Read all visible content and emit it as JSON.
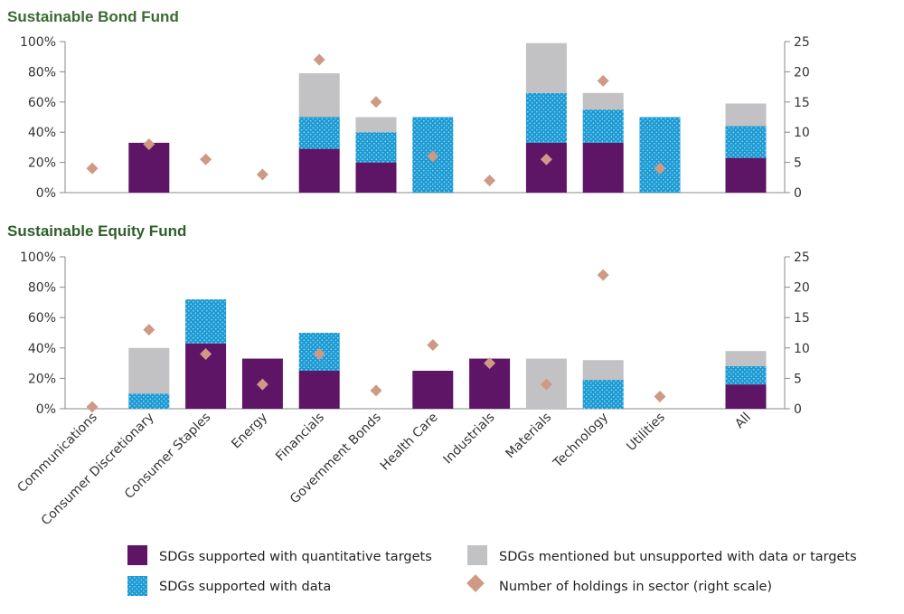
{
  "colors": {
    "quantitative": "#5e1566",
    "data": "#1d9bd4",
    "data_dots": "#bfe6f6",
    "mentioned": "#c2c2c4",
    "holdings": "#cf9a85",
    "bond_title": "#3a6b32",
    "equity_title": "#2f5e2a"
  },
  "legend": {
    "quantitative": "SDGs supported with quantitative targets",
    "data": "SDGs supported with data",
    "mentioned": "SDGs mentioned but unsupported with data or targets",
    "holdings": "Number of holdings in sector (right scale)"
  },
  "chart_data": [
    {
      "type": "bar",
      "stacked": true,
      "title": "Sustainable Bond Fund",
      "categories": [
        "Communications",
        "Consumer Discretionary",
        "Consumer Staples",
        "Energy",
        "Financials",
        "Government Bonds",
        "Health Care",
        "Industrials",
        "Materials",
        "Technology",
        "Utilities",
        "All"
      ],
      "series": [
        {
          "name": "SDGs supported with quantitative targets",
          "values": [
            0,
            33,
            0,
            0,
            29,
            20,
            0,
            0,
            33,
            33,
            0,
            23
          ]
        },
        {
          "name": "SDGs supported with data",
          "values": [
            0,
            0,
            0,
            0,
            21,
            20,
            50,
            0,
            33,
            22,
            50,
            21
          ]
        },
        {
          "name": "SDGs mentioned but unsupported with data or targets",
          "values": [
            0,
            0,
            0,
            0,
            29,
            10,
            0,
            0,
            33,
            11,
            0,
            15
          ]
        }
      ],
      "holdings": {
        "name": "Number of holdings in sector (right scale)",
        "values": [
          4,
          8,
          5.5,
          3,
          22,
          15,
          6,
          2,
          5.5,
          18.5,
          4,
          null
        ]
      },
      "y_left": {
        "min": 0,
        "max": 100,
        "ticks": [
          "0%",
          "20%",
          "40%",
          "60%",
          "80%",
          "100%"
        ]
      },
      "y_right": {
        "min": 0,
        "max": 25,
        "ticks": [
          "0",
          "5",
          "10",
          "15",
          "20",
          "25"
        ]
      }
    },
    {
      "type": "bar",
      "stacked": true,
      "title": "Sustainable Equity Fund",
      "categories": [
        "Communications",
        "Consumer Discretionary",
        "Consumer Staples",
        "Energy",
        "Financials",
        "Government Bonds",
        "Health Care",
        "Industrials",
        "Materials",
        "Technology",
        "Utilities",
        "All"
      ],
      "series": [
        {
          "name": "SDGs supported with quantitative targets",
          "values": [
            0,
            0,
            43,
            33,
            25,
            0,
            25,
            33,
            0,
            0,
            0,
            16
          ]
        },
        {
          "name": "SDGs supported with data",
          "values": [
            0,
            10,
            29,
            0,
            25,
            0,
            0,
            0,
            0,
            19,
            0,
            12
          ]
        },
        {
          "name": "SDGs mentioned but unsupported with data or targets",
          "values": [
            0,
            30,
            0,
            0,
            0,
            0,
            0,
            0,
            33,
            13,
            0,
            10
          ]
        }
      ],
      "holdings": {
        "name": "Number of holdings in sector (right scale)",
        "values": [
          0.3,
          13,
          9,
          4,
          9,
          3,
          10.5,
          7.5,
          4,
          22,
          2,
          null
        ]
      },
      "y_left": {
        "min": 0,
        "max": 100,
        "ticks": [
          "0%",
          "20%",
          "40%",
          "60%",
          "80%",
          "100%"
        ]
      },
      "y_right": {
        "min": 0,
        "max": 25,
        "ticks": [
          "0",
          "5",
          "10",
          "15",
          "20",
          "25"
        ]
      }
    }
  ]
}
